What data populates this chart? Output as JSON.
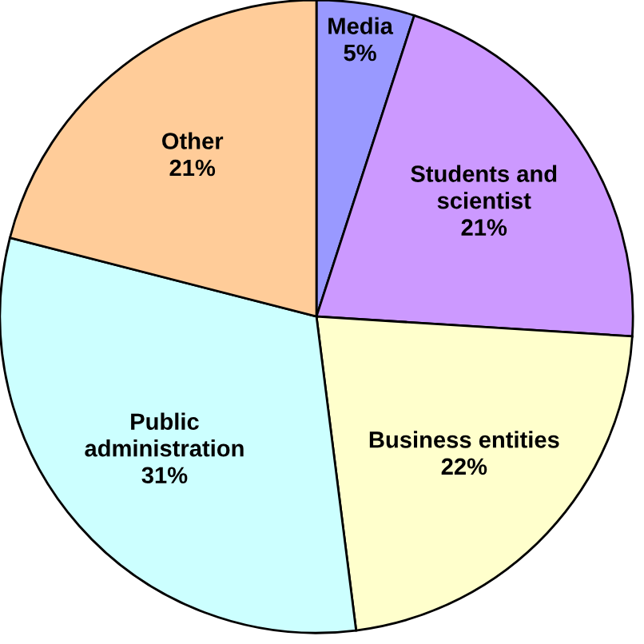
{
  "chart_data": {
    "type": "pie",
    "categories": [
      "Media",
      "Students and\nscientist",
      "Business entities",
      "Public\nadministration",
      "Other"
    ],
    "values": [
      5,
      21,
      22,
      31,
      21
    ],
    "value_labels": [
      "5%",
      "21%",
      "22%",
      "31%",
      "21%"
    ],
    "colors": [
      "#9999ff",
      "#cc99ff",
      "#ffffcc",
      "#ccffff",
      "#ffcc99"
    ],
    "legend": false
  }
}
